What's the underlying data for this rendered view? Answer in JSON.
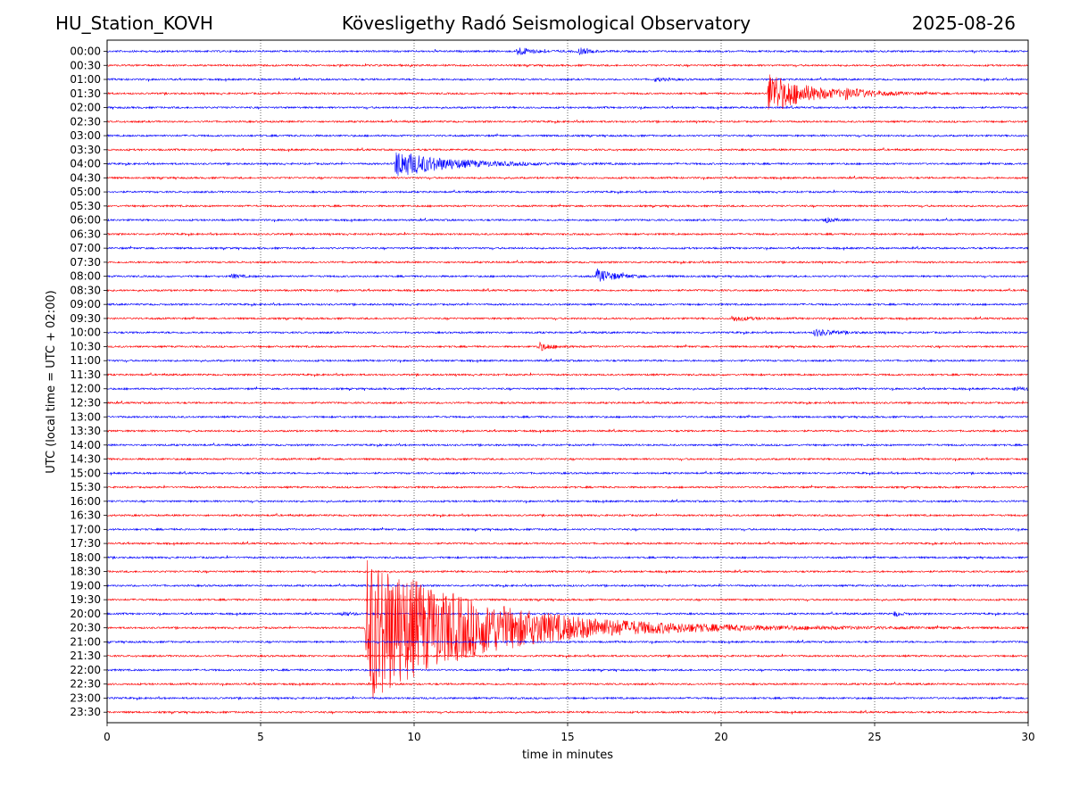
{
  "header": {
    "station": "HU_Station_KOVH",
    "observatory": "Kövesligethy Radó Seismological Observatory",
    "date": "2025-08-26"
  },
  "chart_data": {
    "type": "line",
    "xlabel": "time in minutes",
    "ylabel": "UTC (local time = UTC + 02:00)",
    "xlim": [
      0,
      30
    ],
    "xticks": [
      0,
      5,
      10,
      15,
      20,
      25,
      30
    ],
    "grid": "vertical dotted at x ticks",
    "colors": {
      "even_row": "#0000ff",
      "odd_row": "#ff0000"
    },
    "rows": [
      "00:00",
      "00:30",
      "01:00",
      "01:30",
      "02:00",
      "02:30",
      "03:00",
      "03:30",
      "04:00",
      "04:30",
      "05:00",
      "05:30",
      "06:00",
      "06:30",
      "07:00",
      "07:30",
      "08:00",
      "08:30",
      "09:00",
      "09:30",
      "10:00",
      "10:30",
      "11:00",
      "11:30",
      "12:00",
      "12:30",
      "13:00",
      "13:30",
      "14:00",
      "14:30",
      "15:00",
      "15:30",
      "16:00",
      "16:30",
      "17:00",
      "17:30",
      "18:00",
      "18:30",
      "19:00",
      "19:30",
      "20:00",
      "20:30",
      "21:00",
      "21:30",
      "22:00",
      "22:30",
      "23:00",
      "23:30"
    ],
    "events": [
      {
        "row": "00:00",
        "start_min": 13.3,
        "amplitude": 0.35,
        "decay_min": 0.5
      },
      {
        "row": "00:00",
        "start_min": 15.3,
        "amplitude": 0.3,
        "decay_min": 0.3
      },
      {
        "row": "01:00",
        "start_min": 17.8,
        "amplitude": 0.15,
        "decay_min": 0.4
      },
      {
        "row": "01:30",
        "start_min": 21.5,
        "amplitude": 1.6,
        "decay_min": 1.2
      },
      {
        "row": "01:30",
        "start_min": 24.0,
        "amplitude": 0.25,
        "decay_min": 0.8
      },
      {
        "row": "04:00",
        "start_min": 9.35,
        "amplitude": 1.0,
        "decay_min": 1.6
      },
      {
        "row": "06:00",
        "start_min": 23.3,
        "amplitude": 0.25,
        "decay_min": 0.3
      },
      {
        "row": "08:00",
        "start_min": 4.0,
        "amplitude": 0.2,
        "decay_min": 0.3
      },
      {
        "row": "08:00",
        "start_min": 15.9,
        "amplitude": 0.55,
        "decay_min": 0.6
      },
      {
        "row": "09:30",
        "start_min": 20.3,
        "amplitude": 0.2,
        "decay_min": 0.6
      },
      {
        "row": "10:00",
        "start_min": 23.0,
        "amplitude": 0.3,
        "decay_min": 0.6
      },
      {
        "row": "10:30",
        "start_min": 14.0,
        "amplitude": 0.35,
        "decay_min": 0.4
      },
      {
        "row": "12:00",
        "start_min": 29.5,
        "amplitude": 0.15,
        "decay_min": 0.5
      },
      {
        "row": "20:00",
        "start_min": 7.6,
        "amplitude": 0.2,
        "decay_min": 0.3
      },
      {
        "row": "20:00",
        "start_min": 25.6,
        "amplitude": 0.25,
        "decay_min": 0.2
      },
      {
        "row": "20:30",
        "start_min": 8.4,
        "amplitude": 5.5,
        "decay_min": 3.5
      }
    ]
  }
}
